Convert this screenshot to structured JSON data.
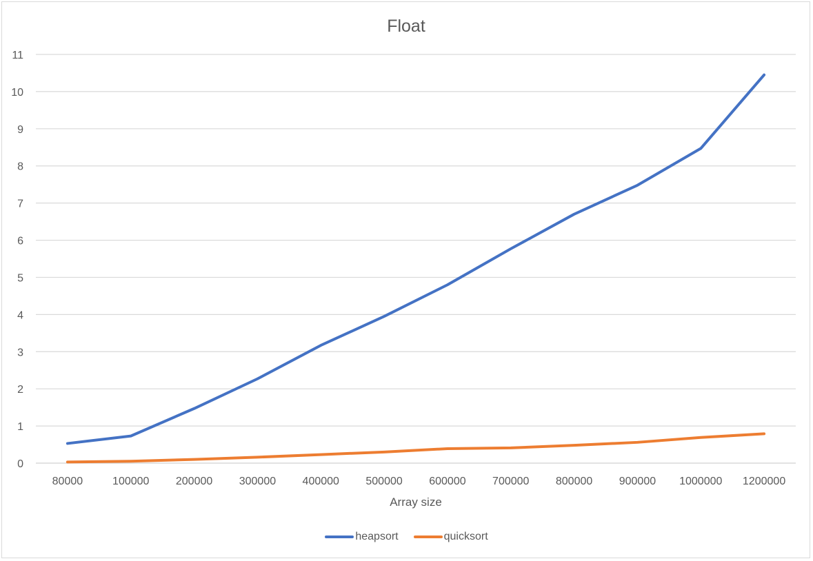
{
  "chart_data": {
    "type": "line",
    "title": "Float",
    "xlabel": "Array size",
    "ylabel": "",
    "categories": [
      "80000",
      "100000",
      "200000",
      "300000",
      "400000",
      "500000",
      "600000",
      "700000",
      "800000",
      "900000",
      "1000000",
      "1200000"
    ],
    "ylim": [
      0,
      11
    ],
    "yticks": [
      0,
      1,
      2,
      3,
      4,
      5,
      6,
      7,
      8,
      9,
      10,
      11
    ],
    "grid": true,
    "legend_position": "bottom",
    "series": [
      {
        "name": "heapsort",
        "color": "#4472C4",
        "values": [
          0.53,
          0.73,
          1.47,
          2.27,
          3.17,
          3.95,
          4.8,
          5.77,
          6.7,
          7.48,
          8.47,
          10.45
        ]
      },
      {
        "name": "quicksort",
        "color": "#ED7D31",
        "values": [
          0.03,
          0.05,
          0.1,
          0.16,
          0.23,
          0.3,
          0.39,
          0.41,
          0.48,
          0.56,
          0.69,
          0.79
        ]
      }
    ]
  }
}
